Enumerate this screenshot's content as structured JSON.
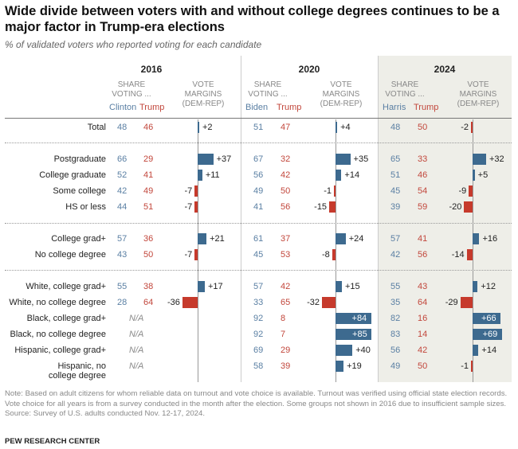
{
  "title": "Wide divide between voters with and without college degrees continues to be a major factor in Trump-era elections",
  "subtitle": "% of validated voters who reported voting for each candidate",
  "headers": {
    "share": "SHARE VOTING ...",
    "margins": "VOTE MARGINS (DEM-REP)"
  },
  "na_label": "N/A",
  "colors": {
    "dem": "#5a7fa3",
    "rep": "#c2473c",
    "bar_dem": "#3d6a8f",
    "bar_rep": "#c63a2c",
    "highlight_panel": "#eeeee8"
  },
  "chart_data": {
    "type": "table",
    "years": [
      {
        "year": "2016",
        "dem": "Clinton",
        "rep": "Trump"
      },
      {
        "year": "2020",
        "dem": "Biden",
        "rep": "Trump"
      },
      {
        "year": "2024",
        "dem": "Harris",
        "rep": "Trump"
      }
    ],
    "rows": [
      {
        "label": "Total",
        "data": [
          [
            48,
            46,
            2
          ],
          [
            51,
            47,
            4
          ],
          [
            48,
            50,
            -2
          ]
        ]
      },
      {
        "label": "Postgraduate",
        "data": [
          [
            66,
            29,
            37
          ],
          [
            67,
            32,
            35
          ],
          [
            65,
            33,
            32
          ]
        ]
      },
      {
        "label": "College graduate",
        "data": [
          [
            52,
            41,
            11
          ],
          [
            56,
            42,
            14
          ],
          [
            51,
            46,
            5
          ]
        ]
      },
      {
        "label": "Some college",
        "data": [
          [
            42,
            49,
            -7
          ],
          [
            49,
            50,
            -1
          ],
          [
            45,
            54,
            -9
          ]
        ]
      },
      {
        "label": "HS or less",
        "data": [
          [
            44,
            51,
            -7
          ],
          [
            41,
            56,
            -15
          ],
          [
            39,
            59,
            -20
          ]
        ]
      },
      {
        "label": "College grad+",
        "data": [
          [
            57,
            36,
            21
          ],
          [
            61,
            37,
            24
          ],
          [
            57,
            41,
            16
          ]
        ]
      },
      {
        "label": "No college degree",
        "data": [
          [
            43,
            50,
            -7
          ],
          [
            45,
            53,
            -8
          ],
          [
            42,
            56,
            -14
          ]
        ]
      },
      {
        "label": "White, college grad+",
        "data": [
          [
            55,
            38,
            17
          ],
          [
            57,
            42,
            15
          ],
          [
            55,
            43,
            12
          ]
        ]
      },
      {
        "label": "White, no college degree",
        "data": [
          [
            28,
            64,
            -36
          ],
          [
            33,
            65,
            -32
          ],
          [
            35,
            64,
            -29
          ]
        ]
      },
      {
        "label": "Black, college grad+",
        "data": [
          null,
          [
            92,
            8,
            84
          ],
          [
            82,
            16,
            66
          ]
        ]
      },
      {
        "label": "Black, no college degree",
        "data": [
          null,
          [
            92,
            7,
            85
          ],
          [
            83,
            14,
            69
          ]
        ]
      },
      {
        "label": "Hispanic, college grad+",
        "data": [
          null,
          [
            69,
            29,
            40
          ],
          [
            56,
            42,
            14
          ]
        ]
      },
      {
        "label": "Hispanic, no college degree",
        "data": [
          null,
          [
            58,
            39,
            19
          ],
          [
            49,
            50,
            -1
          ]
        ]
      }
    ]
  },
  "note": "Note: Based on adult citizens for whom reliable data on turnout and vote choice is available. Turnout was verified using official state election records. Vote choice for all years is from a survey conducted in the month after the election. Some groups not shown in 2016 due to insufficient sample sizes.",
  "source": "Source: Survey of U.S. adults conducted Nov. 12-17, 2024.",
  "org": "PEW RESEARCH CENTER"
}
